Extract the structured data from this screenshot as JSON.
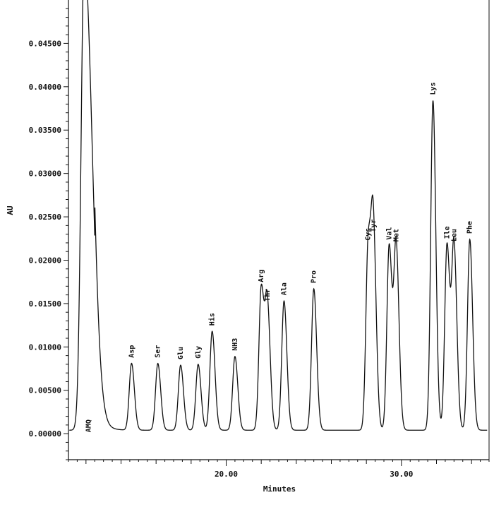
{
  "chart_data": {
    "type": "line",
    "title": "",
    "xlabel": "Minutes",
    "ylabel": "AU",
    "xlim": [
      11,
      35
    ],
    "ylim": [
      -0.003,
      0.05
    ],
    "x_ticks": [
      20,
      30
    ],
    "x_tick_labels": [
      "20.00",
      "30.00"
    ],
    "y_ticks": [
      0,
      0.005,
      0.01,
      0.015,
      0.02,
      0.025,
      0.03,
      0.035,
      0.04,
      0.045
    ],
    "y_tick_labels": [
      "0.00000",
      "0.00500",
      "0.01000",
      "0.01500",
      "0.02000",
      "0.02500",
      "0.03000",
      "0.03500",
      "0.04000",
      "0.04500"
    ],
    "grid": false,
    "baseline": 0.0004,
    "series": [
      {
        "peaks": [
          {
            "label": "AMQ",
            "x": 11.9,
            "y": 0.055
          },
          {
            "label": "Asp",
            "x": 14.6,
            "y": 0.0081
          },
          {
            "label": "Ser",
            "x": 16.1,
            "y": 0.0081
          },
          {
            "label": "Glu",
            "x": 17.4,
            "y": 0.0079
          },
          {
            "label": "Gly",
            "x": 18.4,
            "y": 0.008
          },
          {
            "label": "His",
            "x": 19.2,
            "y": 0.0118
          },
          {
            "label": "NH3",
            "x": 20.5,
            "y": 0.0089
          },
          {
            "label": "Arg",
            "x": 22.0,
            "y": 0.0168
          },
          {
            "label": "Thr",
            "x": 22.35,
            "y": 0.0146
          },
          {
            "label": "Ala",
            "x": 23.3,
            "y": 0.0153
          },
          {
            "label": "Pro",
            "x": 25.0,
            "y": 0.0167
          },
          {
            "label": "Cys",
            "x": 28.1,
            "y": 0.0216
          },
          {
            "label": "Tyr",
            "x": 28.4,
            "y": 0.0226
          },
          {
            "label": "Val",
            "x": 29.3,
            "y": 0.0217
          },
          {
            "label": "Met",
            "x": 29.7,
            "y": 0.0215
          },
          {
            "label": "Lys",
            "x": 31.8,
            "y": 0.0384
          },
          {
            "label": "Ile",
            "x": 32.6,
            "y": 0.0218
          },
          {
            "label": "Leu",
            "x": 33.0,
            "y": 0.0215
          },
          {
            "label": "Phe",
            "x": 33.9,
            "y": 0.0224
          }
        ]
      }
    ]
  }
}
